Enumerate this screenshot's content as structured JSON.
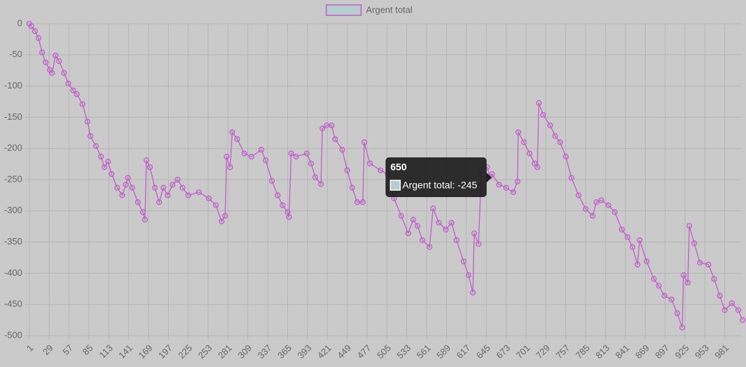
{
  "chart_data": {
    "type": "line",
    "series": [
      {
        "name": "Argent total",
        "color": "#c25ccc",
        "fill": "#b7cdd0",
        "x": [
          1,
          4,
          9,
          14,
          19,
          24,
          30,
          33,
          38,
          43,
          50,
          56,
          63,
          68,
          76,
          83,
          87,
          95,
          102,
          107,
          112,
          117,
          125,
          132,
          137,
          140,
          146,
          154,
          161,
          164,
          166,
          171,
          178,
          184,
          190,
          196,
          203,
          210,
          217,
          225,
          240,
          254,
          264,
          272,
          277,
          279,
          284,
          287,
          294,
          304,
          314,
          328,
          334,
          343,
          351,
          358,
          365,
          367,
          370,
          377,
          392,
          398,
          404,
          412,
          414,
          420,
          427,
          432,
          442,
          449,
          456,
          463,
          471,
          473,
          481,
          496,
          506,
          515,
          525,
          535,
          542,
          548,
          555,
          565,
          570,
          578,
          588,
          596,
          603,
          613,
          620,
          626,
          628,
          634,
          638,
          646,
          650,
          653,
          663,
          673,
          683,
          689,
          690,
          698,
          706,
          713,
          717,
          719,
          725,
          735,
          742,
          749,
          757,
          765,
          775,
          785,
          795,
          800,
          807,
          817,
          826,
          836,
          844,
          851,
          858,
          861,
          871,
          881,
          888,
          896,
          906,
          914,
          921,
          923,
          929,
          931,
          938,
          946,
          958,
          966,
          974,
          981,
          991,
          1000,
          1006
        ],
        "values": [
          0,
          -4,
          -12,
          -23,
          -46,
          -62,
          -74,
          -79,
          -51,
          -60,
          -79,
          -96,
          -107,
          -113,
          -129,
          -157,
          -180,
          -196,
          -213,
          -230,
          -221,
          -241,
          -263,
          -275,
          -258,
          -247,
          -263,
          -286,
          -302,
          -314,
          -219,
          -230,
          -263,
          -286,
          -263,
          -275,
          -258,
          -250,
          -263,
          -275,
          -270,
          -280,
          -291,
          -317,
          -308,
          -213,
          -230,
          -174,
          -185,
          -208,
          -213,
          -202,
          -219,
          -252,
          -275,
          -291,
          -302,
          -310,
          -208,
          -213,
          -208,
          -224,
          -246,
          -257,
          -168,
          -163,
          -163,
          -185,
          -202,
          -235,
          -263,
          -286,
          -286,
          -190,
          -224,
          -235,
          -241,
          -280,
          -308,
          -336,
          -314,
          -324,
          -347,
          -358,
          -296,
          -319,
          -330,
          -319,
          -347,
          -381,
          -403,
          -431,
          -336,
          -353,
          -236,
          -230,
          -245,
          -241,
          -258,
          -263,
          -270,
          -253,
          -174,
          -190,
          -208,
          -224,
          -230,
          -127,
          -146,
          -163,
          -180,
          -190,
          -213,
          -247,
          -275,
          -297,
          -308,
          -286,
          -283,
          -291,
          -302,
          -330,
          -342,
          -358,
          -386,
          -347,
          -381,
          -409,
          -420,
          -436,
          -442,
          -464,
          -487,
          -403,
          -415,
          -324,
          -352,
          -383,
          -386,
          -409,
          -436,
          -459,
          -448,
          -459,
          -475
        ]
      }
    ],
    "xlim": [
      1,
      1007
    ],
    "xticks": [
      1,
      29,
      57,
      85,
      113,
      141,
      169,
      197,
      225,
      253,
      281,
      309,
      337,
      365,
      393,
      421,
      449,
      477,
      505,
      533,
      561,
      589,
      617,
      645,
      673,
      701,
      729,
      757,
      785,
      813,
      841,
      869,
      897,
      925,
      953,
      981
    ],
    "ylim": [
      -500,
      0
    ],
    "yticks": [
      0,
      -50,
      -100,
      -150,
      -200,
      -250,
      -300,
      -350,
      -400,
      -450,
      -500
    ],
    "grid": true,
    "legend": "top",
    "tooltip": {
      "title": 650,
      "label": "Argent total: -245"
    }
  }
}
